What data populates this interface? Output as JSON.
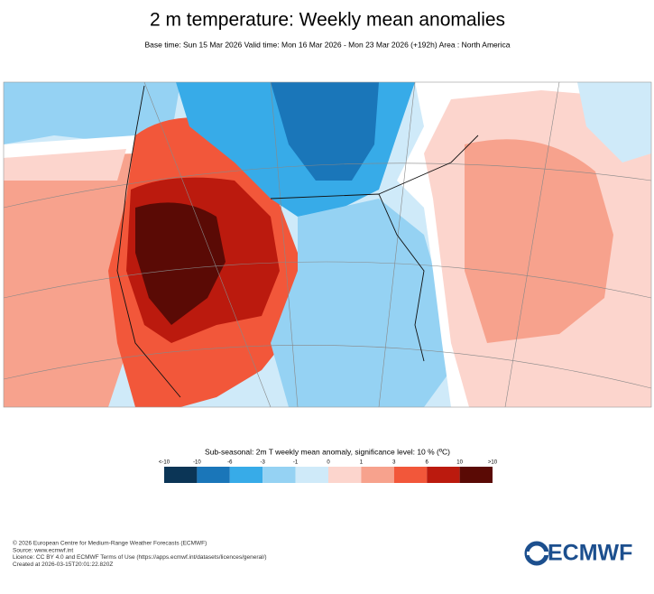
{
  "header": {
    "title": "2 m temperature: Weekly mean anomalies",
    "subtitle": "Base time: Sun 15 Mar 2026 Valid time: Mon 16 Mar 2026 - Mon 23 Mar 2026 (+192h) Area : North America"
  },
  "colorbar": {
    "title": "Sub-seasonal: 2m T weekly mean anomaly, significance level: 10 % (ºC)",
    "labels": [
      "<-10",
      "-10",
      "-6",
      "-3",
      "-1",
      "0",
      "1",
      "3",
      "6",
      "10",
      ">10"
    ],
    "colors": [
      "#0b3556",
      "#1a76b9",
      "#37abe8",
      "#95d2f3",
      "#cfeaf9",
      "#fcd5cd",
      "#f7a28d",
      "#f2573a",
      "#bb1a0e",
      "#5a0a05"
    ]
  },
  "footer": {
    "lines": [
      "© 2026 European Centre for Medium-Range Weather Forecasts (ECMWF)",
      "Source: www.ecmwf.int",
      "Licence: CC BY 4.0 and ECMWF Terms of Use (https://apps.ecmwf.int/datasets/licences/general/)",
      "Created at 2026-03-15T20:01:22.820Z"
    ],
    "logo": "ECMWF"
  }
}
